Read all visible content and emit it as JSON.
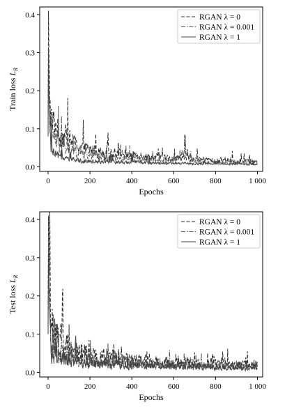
{
  "chart_data": [
    {
      "type": "line",
      "xlabel": "Epochs",
      "ylabel_main": "Train loss ",
      "ylabel_sub": "R",
      "xlim": [
        -40,
        1025
      ],
      "ylim": [
        -0.012,
        0.42
      ],
      "x_ticks": [
        0,
        200,
        400,
        600,
        800,
        1000
      ],
      "x_tick_labels": [
        "0",
        "200",
        "400",
        "600",
        "800",
        "1 000"
      ],
      "y_ticks": [
        0.0,
        0.1,
        0.2,
        0.3,
        0.4
      ],
      "y_tick_labels": [
        "0.0",
        "0.1",
        "0.2",
        "0.3",
        "0.4"
      ],
      "grid": false,
      "legend_position": "top-right",
      "series": [
        {
          "name": "RGAN λ = 0",
          "style": "dashed",
          "color": "#2b2b2b",
          "x": [
            0,
            2,
            4,
            7,
            10,
            15,
            20,
            30,
            40,
            50,
            60,
            80,
            100,
            130,
            160,
            200,
            250,
            300,
            350,
            400,
            450,
            500,
            550,
            600,
            640,
            700,
            750,
            800,
            850,
            900,
            950,
            1000
          ],
          "y": [
            0.14,
            0.41,
            0.3,
            0.22,
            0.16,
            0.13,
            0.11,
            0.12,
            0.1,
            0.09,
            0.08,
            0.085,
            0.07,
            0.06,
            0.05,
            0.045,
            0.04,
            0.035,
            0.035,
            0.03,
            0.03,
            0.025,
            0.025,
            0.02,
            0.025,
            0.02,
            0.02,
            0.015,
            0.02,
            0.015,
            0.015,
            0.012
          ]
        },
        {
          "name": "RGAN λ = 0.001",
          "style": "dashdot",
          "color": "#555555",
          "x": [
            0,
            2,
            4,
            7,
            10,
            15,
            20,
            30,
            40,
            50,
            60,
            80,
            100,
            130,
            160,
            200,
            250,
            300,
            350,
            400,
            450,
            500,
            550,
            600,
            640,
            700,
            750,
            800,
            850,
            900,
            950,
            1000
          ],
          "y": [
            0.1,
            0.3,
            0.22,
            0.16,
            0.12,
            0.1,
            0.09,
            0.075,
            0.065,
            0.06,
            0.055,
            0.05,
            0.045,
            0.04,
            0.035,
            0.03,
            0.028,
            0.025,
            0.022,
            0.02,
            0.02,
            0.018,
            0.016,
            0.015,
            0.04,
            0.015,
            0.012,
            0.012,
            0.01,
            0.01,
            0.01,
            0.008
          ]
        },
        {
          "name": "RGAN λ = 1",
          "style": "solid",
          "color": "#444444",
          "x": [
            0,
            2,
            4,
            7,
            10,
            15,
            20,
            30,
            40,
            50,
            60,
            80,
            100,
            130,
            160,
            200,
            250,
            300,
            350,
            400,
            450,
            500,
            550,
            600,
            640,
            700,
            750,
            800,
            850,
            900,
            950,
            1000
          ],
          "y": [
            0.08,
            0.31,
            0.2,
            0.12,
            0.08,
            0.05,
            0.04,
            0.035,
            0.03,
            0.028,
            0.025,
            0.022,
            0.02,
            0.018,
            0.016,
            0.015,
            0.014,
            0.013,
            0.012,
            0.012,
            0.011,
            0.01,
            0.01,
            0.009,
            0.009,
            0.008,
            0.008,
            0.008,
            0.007,
            0.007,
            0.007,
            0.006
          ]
        }
      ]
    },
    {
      "type": "line",
      "xlabel": "Epochs",
      "ylabel_main": "Test loss ",
      "ylabel_sub": "R",
      "xlim": [
        -40,
        1025
      ],
      "ylim": [
        -0.012,
        0.42
      ],
      "x_ticks": [
        0,
        200,
        400,
        600,
        800,
        1000
      ],
      "x_tick_labels": [
        "0",
        "200",
        "400",
        "600",
        "800",
        "1 000"
      ],
      "y_ticks": [
        0.0,
        0.1,
        0.2,
        0.3,
        0.4
      ],
      "y_tick_labels": [
        "0.0",
        "0.1",
        "0.2",
        "0.3",
        "0.4"
      ],
      "grid": false,
      "legend_position": "top-right",
      "series": [
        {
          "name": "RGAN λ = 0",
          "style": "dashed",
          "color": "#2b2b2b",
          "x": [
            0,
            2,
            4,
            7,
            10,
            15,
            20,
            30,
            40,
            60,
            80,
            100,
            130,
            160,
            200,
            250,
            300,
            350,
            400,
            450,
            500,
            550,
            600,
            650,
            700,
            750,
            800,
            850,
            900,
            950,
            1000
          ],
          "y": [
            0.15,
            0.41,
            0.32,
            0.22,
            0.16,
            0.13,
            0.11,
            0.1,
            0.09,
            0.08,
            0.07,
            0.06,
            0.055,
            0.05,
            0.045,
            0.04,
            0.035,
            0.033,
            0.03,
            0.03,
            0.028,
            0.026,
            0.025,
            0.024,
            0.023,
            0.022,
            0.021,
            0.02,
            0.02,
            0.019,
            0.018
          ]
        },
        {
          "name": "RGAN λ = 0.001",
          "style": "dashdot",
          "color": "#555555",
          "x": [
            0,
            2,
            4,
            7,
            10,
            15,
            20,
            30,
            40,
            60,
            80,
            100,
            130,
            160,
            200,
            250,
            300,
            350,
            400,
            450,
            500,
            550,
            600,
            650,
            700,
            750,
            800,
            850,
            900,
            950,
            1000
          ],
          "y": [
            0.12,
            0.36,
            0.27,
            0.18,
            0.12,
            0.1,
            0.08,
            0.07,
            0.06,
            0.05,
            0.045,
            0.04,
            0.037,
            0.034,
            0.03,
            0.028,
            0.026,
            0.024,
            0.022,
            0.021,
            0.02,
            0.02,
            0.019,
            0.018,
            0.018,
            0.017,
            0.016,
            0.016,
            0.015,
            0.015,
            0.014
          ]
        },
        {
          "name": "RGAN λ = 1",
          "style": "solid",
          "color": "#444444",
          "x": [
            0,
            2,
            4,
            7,
            10,
            15,
            20,
            30,
            40,
            60,
            80,
            100,
            130,
            160,
            200,
            250,
            300,
            350,
            400,
            450,
            500,
            550,
            600,
            650,
            700,
            750,
            800,
            850,
            900,
            950,
            1000
          ],
          "y": [
            0.1,
            0.31,
            0.25,
            0.15,
            0.09,
            0.07,
            0.05,
            0.05,
            0.045,
            0.04,
            0.035,
            0.03,
            0.028,
            0.026,
            0.024,
            0.022,
            0.02,
            0.019,
            0.018,
            0.017,
            0.016,
            0.015,
            0.015,
            0.014,
            0.014,
            0.013,
            0.013,
            0.012,
            0.012,
            0.011,
            0.011
          ]
        }
      ]
    }
  ]
}
